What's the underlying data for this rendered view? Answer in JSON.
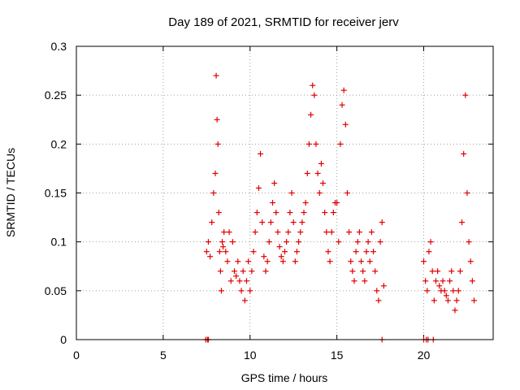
{
  "chart_data": {
    "type": "scatter",
    "title": "Day 189 of 2021, SRMTID for receiver jerv",
    "xlabel": "GPS time / hours",
    "ylabel": "SRMTID / TECUs",
    "xlim": [
      0,
      24
    ],
    "ylim": [
      0,
      0.3
    ],
    "xticks": [
      "0",
      "5",
      "10",
      "15",
      "20"
    ],
    "xtick_values": [
      0,
      5,
      10,
      15,
      20
    ],
    "yticks": [
      "0",
      "0.05",
      "0.1",
      "0.15",
      "0.2",
      "0.25",
      "0.3"
    ],
    "ytick_values": [
      0,
      0.05,
      0.1,
      0.15,
      0.2,
      0.25,
      0.3
    ],
    "grid": true,
    "marker": "+",
    "color": "#e00000",
    "series": [
      {
        "values_x": [
          7.5,
          7.6,
          7.7,
          7.8,
          7.9,
          8.0,
          8.05,
          8.1,
          8.15,
          8.2,
          8.25,
          8.3,
          8.35,
          8.4,
          8.45,
          8.5,
          8.6,
          8.7,
          8.8,
          8.9,
          9.0,
          9.1,
          9.2,
          9.3,
          9.4,
          9.5,
          9.6,
          9.7,
          9.8,
          9.9,
          10.0,
          10.1,
          10.2,
          10.3,
          10.4,
          10.5,
          10.6,
          10.7,
          10.8,
          10.9,
          11.0,
          11.1,
          11.2,
          11.3,
          11.4,
          11.5,
          11.6,
          11.7,
          11.8,
          11.9,
          12.0,
          12.1,
          12.2,
          12.3,
          12.4,
          12.5,
          12.6,
          12.7,
          12.8,
          12.9,
          13.0,
          13.1,
          13.2,
          13.3,
          13.4,
          13.5,
          13.6,
          13.7,
          13.8,
          13.9,
          14.0,
          14.1,
          14.2,
          14.3,
          14.4,
          14.5,
          14.6,
          14.7,
          14.8,
          14.9,
          15.0,
          15.1,
          15.2,
          15.3,
          15.4,
          15.5,
          15.6,
          15.7,
          15.8,
          15.9,
          16.0,
          16.1,
          16.2,
          16.3,
          16.4,
          16.5,
          16.6,
          16.7,
          16.8,
          16.9,
          17.0,
          17.1,
          17.2,
          17.3,
          17.4,
          17.5,
          17.6,
          17.7,
          20.0,
          20.1,
          20.2,
          20.3,
          20.4,
          20.5,
          20.6,
          20.7,
          20.8,
          20.9,
          21.0,
          21.1,
          21.2,
          21.3,
          21.4,
          21.5,
          21.6,
          21.7,
          21.8,
          21.9,
          22.0,
          22.1,
          22.2,
          22.3,
          22.4,
          22.5,
          22.6,
          22.7,
          22.8,
          22.9
        ],
        "values_y": [
          0.09,
          0.1,
          0.085,
          0.12,
          0.15,
          0.17,
          0.27,
          0.225,
          0.2,
          0.13,
          0.09,
          0.07,
          0.05,
          0.1,
          0.095,
          0.11,
          0.09,
          0.08,
          0.11,
          0.06,
          0.1,
          0.07,
          0.065,
          0.08,
          0.06,
          0.05,
          0.07,
          0.04,
          0.06,
          0.08,
          0.05,
          0.07,
          0.09,
          0.11,
          0.13,
          0.155,
          0.19,
          0.12,
          0.085,
          0.07,
          0.08,
          0.1,
          0.12,
          0.14,
          0.16,
          0.13,
          0.11,
          0.095,
          0.085,
          0.08,
          0.09,
          0.1,
          0.11,
          0.13,
          0.15,
          0.12,
          0.08,
          0.09,
          0.1,
          0.11,
          0.12,
          0.13,
          0.14,
          0.17,
          0.2,
          0.23,
          0.26,
          0.25,
          0.2,
          0.17,
          0.15,
          0.18,
          0.16,
          0.13,
          0.11,
          0.09,
          0.08,
          0.11,
          0.13,
          0.14,
          0.14,
          0.1,
          0.2,
          0.24,
          0.255,
          0.22,
          0.15,
          0.11,
          0.08,
          0.07,
          0.06,
          0.09,
          0.1,
          0.11,
          0.08,
          0.07,
          0.06,
          0.09,
          0.1,
          0.08,
          0.11,
          0.09,
          0.07,
          0.05,
          0.04,
          0.1,
          0.12,
          0.055,
          0.08,
          0.06,
          0.05,
          0.09,
          0.1,
          0.07,
          0.04,
          0.06,
          0.07,
          0.055,
          0.05,
          0.06,
          0.05,
          0.045,
          0.04,
          0.06,
          0.07,
          0.05,
          0.03,
          0.04,
          0.05,
          0.07,
          0.12,
          0.19,
          0.25,
          0.15,
          0.1,
          0.08,
          0.06,
          0.04
        ]
      },
      {
        "values_x": [
          7.45,
          7.55,
          7.6,
          17.6,
          20.0,
          20.15,
          20.25,
          20.55
        ],
        "values_y": [
          0,
          0,
          0,
          0,
          0,
          0,
          0,
          0
        ]
      }
    ]
  }
}
